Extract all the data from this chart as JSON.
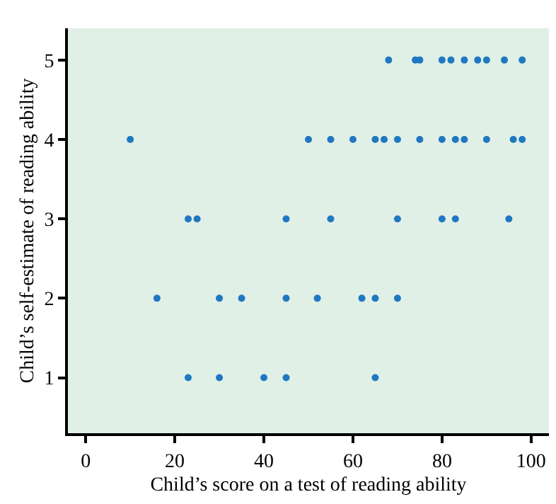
{
  "chart_data": {
    "type": "scatter",
    "xlabel": "Child’s score on a test of reading ability",
    "ylabel": "Child’s self-estimate of reading ability",
    "x": [
      23,
      30,
      40,
      45,
      65,
      16,
      30,
      35,
      45,
      52,
      62,
      65,
      70,
      23,
      25,
      45,
      55,
      70,
      80,
      83,
      95,
      10,
      50,
      55,
      60,
      65,
      67,
      70,
      75,
      80,
      83,
      85,
      90,
      96,
      98,
      68,
      74,
      75,
      80,
      82,
      85,
      88,
      90,
      94,
      98
    ],
    "values": [
      1,
      1,
      1,
      1,
      1,
      2,
      2,
      2,
      2,
      2,
      2,
      2,
      2,
      3,
      3,
      3,
      3,
      3,
      3,
      3,
      3,
      4,
      4,
      4,
      4,
      4,
      4,
      4,
      4,
      4,
      4,
      4,
      4,
      4,
      4,
      5,
      5,
      5,
      5,
      5,
      5,
      5,
      5,
      5,
      5
    ],
    "color": "#1f78c1",
    "marker": "circle",
    "grid": false,
    "legend": false,
    "xlim": [
      -4,
      104
    ],
    "xticks": [
      0,
      20,
      40,
      60,
      80,
      100
    ],
    "ylim": [
      0.3,
      5.4
    ],
    "yticks": [
      1,
      2,
      3,
      4,
      5
    ]
  }
}
